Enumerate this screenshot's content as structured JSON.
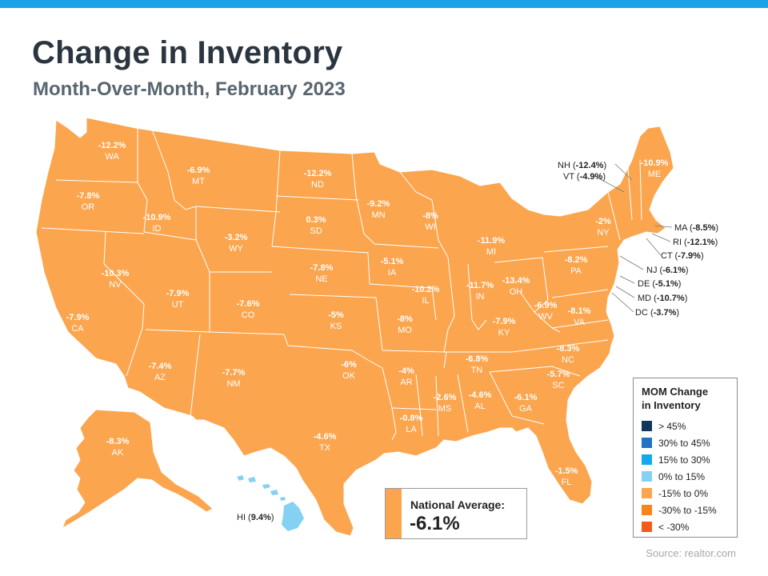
{
  "header": {
    "title": "Change in Inventory",
    "subtitle": "Month-Over-Month, February 2023"
  },
  "colors": {
    "accent_bar": "#1aa3e8",
    "state_fill": "#fba54f",
    "state_border": "#ffffff"
  },
  "states": [
    {
      "code": "WA",
      "value": "-12.2%"
    },
    {
      "code": "OR",
      "value": "-7.8%"
    },
    {
      "code": "CA",
      "value": "-7.9%"
    },
    {
      "code": "NV",
      "value": "-10.3%"
    },
    {
      "code": "ID",
      "value": "-10.9%"
    },
    {
      "code": "MT",
      "value": "-6.9%"
    },
    {
      "code": "WY",
      "value": "-3.2%"
    },
    {
      "code": "UT",
      "value": "-7.9%"
    },
    {
      "code": "AZ",
      "value": "-7.4%"
    },
    {
      "code": "CO",
      "value": "-7.6%"
    },
    {
      "code": "NM",
      "value": "-7.7%"
    },
    {
      "code": "ND",
      "value": "-12.2%"
    },
    {
      "code": "SD",
      "value": "0.3%"
    },
    {
      "code": "NE",
      "value": "-7.8%"
    },
    {
      "code": "KS",
      "value": "-5%"
    },
    {
      "code": "OK",
      "value": "-6%"
    },
    {
      "code": "TX",
      "value": "-4.6%"
    },
    {
      "code": "MN",
      "value": "-9.2%"
    },
    {
      "code": "IA",
      "value": "-5.1%"
    },
    {
      "code": "MO",
      "value": "-8%"
    },
    {
      "code": "AR",
      "value": "-4%"
    },
    {
      "code": "LA",
      "value": "-0.8%"
    },
    {
      "code": "WI",
      "value": "-8%"
    },
    {
      "code": "IL",
      "value": "-10.2%"
    },
    {
      "code": "MI",
      "value": "-11.9%"
    },
    {
      "code": "IN",
      "value": "-11.7%"
    },
    {
      "code": "OH",
      "value": "-13.4%"
    },
    {
      "code": "KY",
      "value": "-7.9%"
    },
    {
      "code": "TN",
      "value": "-6.8%"
    },
    {
      "code": "MS",
      "value": "-2.6%"
    },
    {
      "code": "AL",
      "value": "-4.6%"
    },
    {
      "code": "GA",
      "value": "-6.1%"
    },
    {
      "code": "FL",
      "value": "-1.5%"
    },
    {
      "code": "SC",
      "value": "-5.7%"
    },
    {
      "code": "NC",
      "value": "-8.3%"
    },
    {
      "code": "VA",
      "value": "-8.1%"
    },
    {
      "code": "WV",
      "value": "-6.9%"
    },
    {
      "code": "PA",
      "value": "-8.2%"
    },
    {
      "code": "NY",
      "value": "-2%"
    },
    {
      "code": "ME",
      "value": "-10.9%"
    },
    {
      "code": "AK",
      "value": "-8.3%"
    }
  ],
  "callouts": [
    {
      "code": "NH",
      "value": "-12.4%"
    },
    {
      "code": "VT",
      "value": "-4.9%"
    },
    {
      "code": "MA",
      "value": "-8.5%"
    },
    {
      "code": "RI",
      "value": "-12.1%"
    },
    {
      "code": "CT",
      "value": "-7.9%"
    },
    {
      "code": "NJ",
      "value": "-6.1%"
    },
    {
      "code": "DE",
      "value": "-5.1%"
    },
    {
      "code": "MD",
      "value": "-10.7%"
    },
    {
      "code": "DC",
      "value": "-3.7%"
    },
    {
      "code": "HI",
      "value": "9.4%"
    }
  ],
  "legend": {
    "title_line1": "MOM Change",
    "title_line2": "in Inventory",
    "items": [
      {
        "label": "> 45%",
        "color": "#12355b"
      },
      {
        "label": "30% to 45%",
        "color": "#1f72c4"
      },
      {
        "label": "15% to 30%",
        "color": "#14a9ee"
      },
      {
        "label": "0% to 15%",
        "color": "#84d1f4"
      },
      {
        "label": "-15% to 0%",
        "color": "#fba54f"
      },
      {
        "label": "-30% to -15%",
        "color": "#f7851e"
      },
      {
        "label": "< -30%",
        "color": "#f55a1a"
      }
    ]
  },
  "national_average": {
    "label": "National Average:",
    "value": "-6.1%"
  },
  "source": "Source: realtor.com"
}
